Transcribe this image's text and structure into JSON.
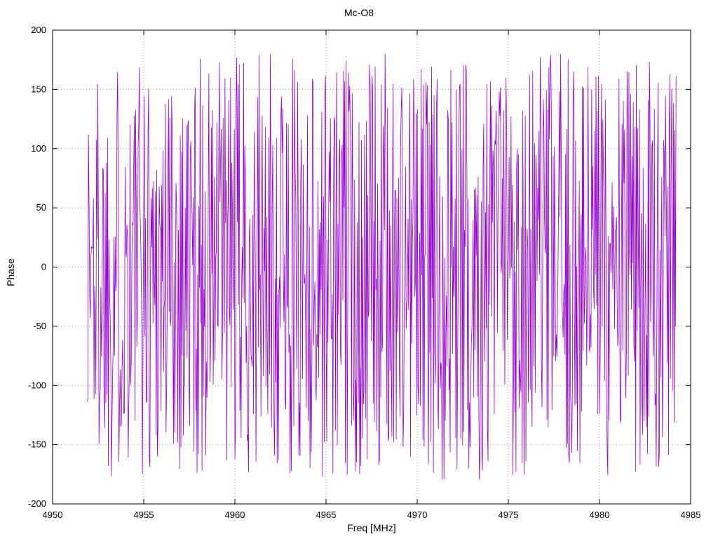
{
  "title": "Mc-O8",
  "axes": {
    "xlabel": "Freq [MHz]",
    "ylabel": "Phase"
  },
  "chart_data": {
    "type": "line",
    "title": "Mc-O8",
    "xlabel": "Freq [MHz]",
    "ylabel": "Phase",
    "xlim": [
      4950,
      4985
    ],
    "ylim": [
      -200,
      200
    ],
    "xticks": [
      4950,
      4955,
      4960,
      4965,
      4970,
      4975,
      4980,
      4985
    ],
    "yticks": [
      -200,
      -150,
      -100,
      -50,
      0,
      50,
      100,
      150,
      200
    ],
    "grid": true,
    "grid_style": "dotted",
    "grid_color": "#9a9a9a",
    "border_color": "#000000",
    "legend": "none",
    "series": [
      {
        "name": "phase",
        "color": "#9400d3",
        "x_start": 4951.9,
        "x_end": 4984.2,
        "n_points": 950,
        "y_min": -180,
        "y_max": 180,
        "distribution": "uniform",
        "seed": 1337,
        "description": "Wrapped interferometric phase noise: dense pseudo-random samples uniformly filling -180..180 deg across 4951.9-4984.2 MHz, drawn as a connected line producing near-vertical spikes spanning the full phase range"
      }
    ]
  }
}
